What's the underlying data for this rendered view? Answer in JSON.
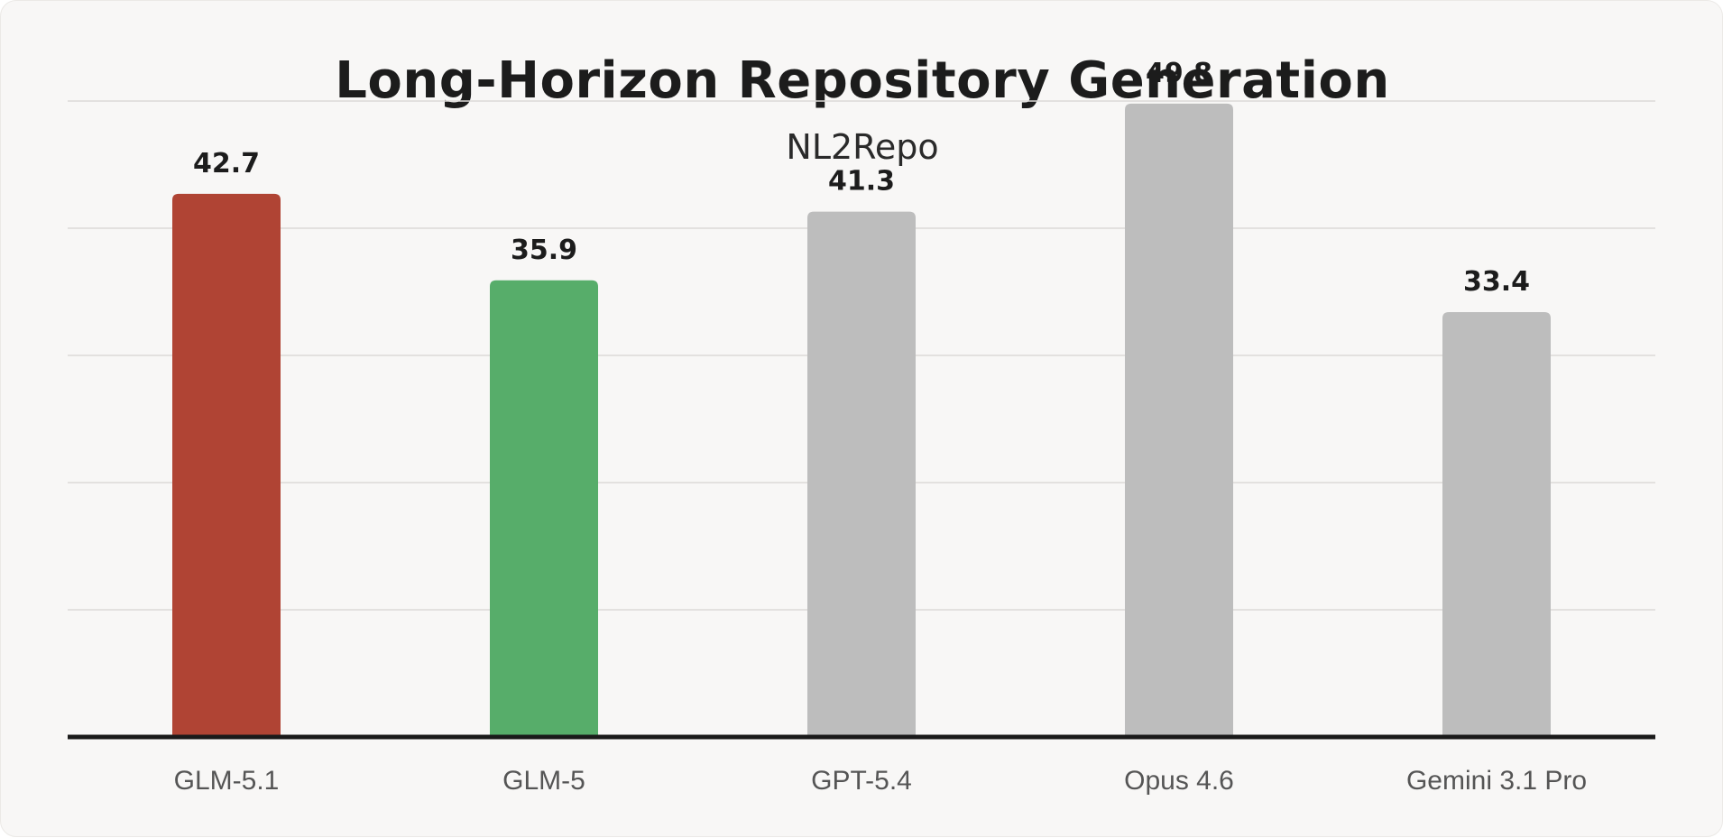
{
  "chart_data": {
    "type": "bar",
    "title": "Long-Horizon Repository Generation",
    "subtitle": "NL2Repo",
    "xlabel": "",
    "ylabel": "",
    "ylim": [
      0,
      60
    ],
    "grid": true,
    "categories": [
      "GLM-5.1",
      "GLM-5",
      "GPT-5.4",
      "Opus 4.6",
      "Gemini 3.1 Pro"
    ],
    "values": [
      42.7,
      35.9,
      41.3,
      49.8,
      33.4
    ],
    "value_labels": [
      "42.7",
      "35.9",
      "41.3",
      "49.8",
      "33.4"
    ],
    "colors": [
      "#b04434",
      "#57ad6a",
      "#bdbdbd",
      "#bdbdbd",
      "#bdbdbd"
    ]
  }
}
